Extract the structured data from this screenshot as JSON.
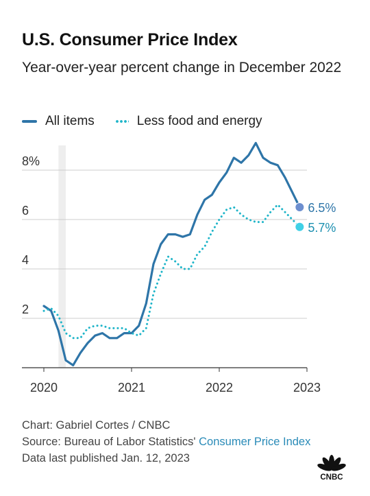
{
  "header": {
    "title": "U.S. Consumer Price Index",
    "subtitle": "Year-over-year percent change in December 2022"
  },
  "legend": {
    "series_1": "All items",
    "series_2": "Less food and energy"
  },
  "footer": {
    "credit": "Chart: Gabriel Cortes / CNBC",
    "source_prefix": "Source: Bureau of Labor Statistics' ",
    "source_link": "Consumer Price Index",
    "published": "Data last published Jan. 12, 2023"
  },
  "logo": {
    "icon": "peacock-icon",
    "text": "CNBC"
  },
  "colors": {
    "all_items": "#2e75a8",
    "core": "#1fb5c9",
    "grid": "#cccccc",
    "recession": "#eeeeee"
  },
  "chart_data": {
    "type": "line",
    "title": "U.S. Consumer Price Index",
    "subtitle": "Year-over-year percent change in December 2022",
    "x": [
      "2020-01",
      "2020-02",
      "2020-03",
      "2020-04",
      "2020-05",
      "2020-06",
      "2020-07",
      "2020-08",
      "2020-09",
      "2020-10",
      "2020-11",
      "2020-12",
      "2021-01",
      "2021-02",
      "2021-03",
      "2021-04",
      "2021-05",
      "2021-06",
      "2021-07",
      "2021-08",
      "2021-09",
      "2021-10",
      "2021-11",
      "2021-12",
      "2022-01",
      "2022-02",
      "2022-03",
      "2022-04",
      "2022-05",
      "2022-06",
      "2022-07",
      "2022-08",
      "2022-09",
      "2022-10",
      "2022-11",
      "2022-12"
    ],
    "xlim": [
      "2019-10",
      "2023-01"
    ],
    "ylim": [
      0,
      9.6
    ],
    "x_ticks": [
      {
        "date": "2020-01",
        "label": "2020"
      },
      {
        "date": "2021-01",
        "label": "2021"
      },
      {
        "date": "2022-01",
        "label": "2022"
      },
      {
        "date": "2023-01",
        "label": "2023"
      }
    ],
    "y_ticks": [
      {
        "value": 2,
        "label": "2"
      },
      {
        "value": 4,
        "label": "4"
      },
      {
        "value": 6,
        "label": "6"
      },
      {
        "value": 8,
        "label": "8%"
      }
    ],
    "grid": true,
    "legend_position": "top-left",
    "shaded_range": [
      "2020-03",
      "2020-04"
    ],
    "series": [
      {
        "name": "All items",
        "style": "solid",
        "values": [
          2.5,
          2.3,
          1.5,
          0.3,
          0.1,
          0.6,
          1.0,
          1.3,
          1.4,
          1.2,
          1.2,
          1.4,
          1.4,
          1.7,
          2.6,
          4.2,
          5.0,
          5.4,
          5.4,
          5.3,
          5.4,
          6.2,
          6.8,
          7.0,
          7.5,
          7.9,
          8.5,
          8.3,
          8.6,
          9.1,
          8.5,
          8.3,
          8.2,
          7.7,
          7.1,
          6.5
        ],
        "end_label": "6.5%"
      },
      {
        "name": "Less food and energy",
        "style": "dotted",
        "values": [
          2.3,
          2.4,
          2.1,
          1.4,
          1.2,
          1.2,
          1.6,
          1.7,
          1.7,
          1.6,
          1.6,
          1.6,
          1.4,
          1.3,
          1.6,
          3.0,
          3.8,
          4.5,
          4.3,
          4.0,
          4.0,
          4.6,
          4.9,
          5.5,
          6.0,
          6.4,
          6.5,
          6.2,
          6.0,
          5.9,
          5.9,
          6.3,
          6.6,
          6.3,
          6.0,
          5.7
        ],
        "end_label": "5.7%"
      }
    ]
  }
}
